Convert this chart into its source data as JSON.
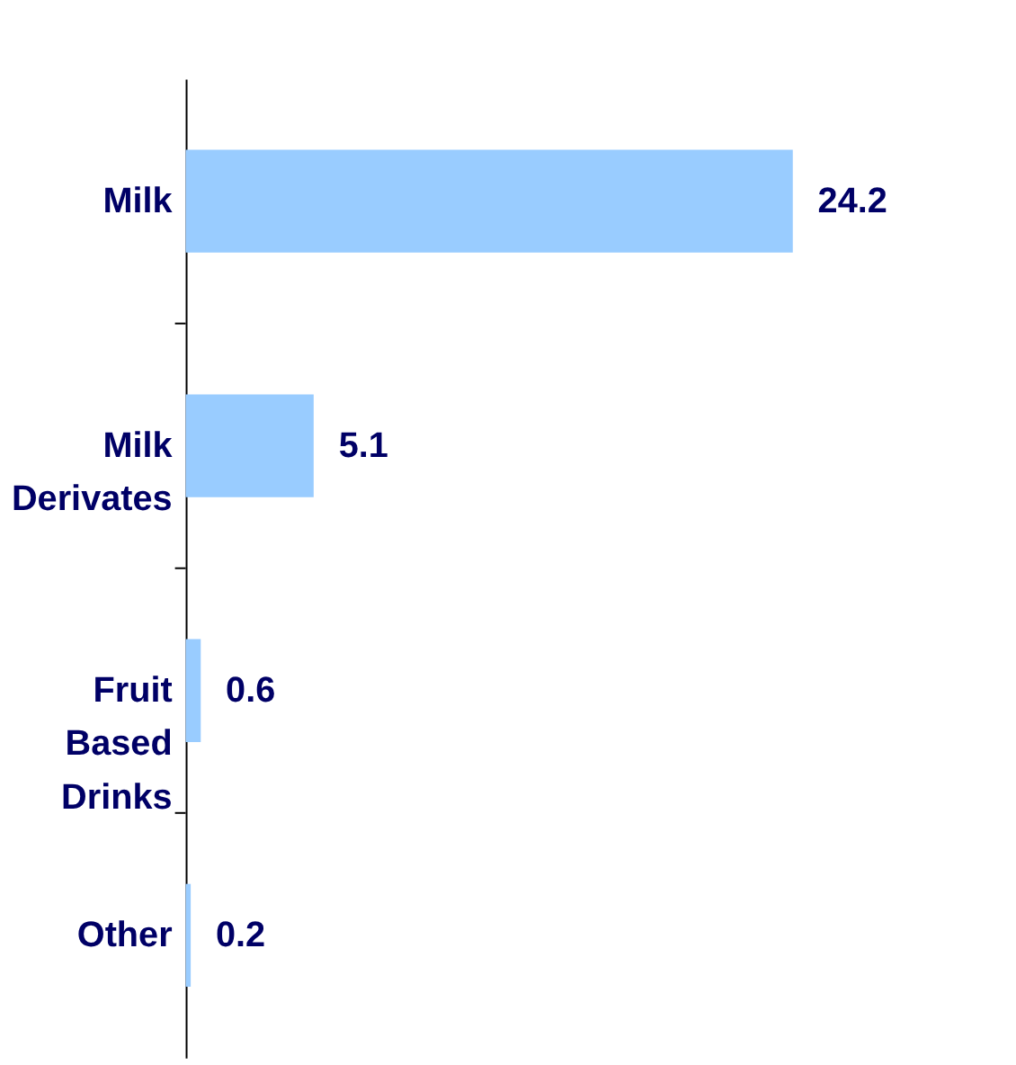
{
  "chart_data": {
    "type": "bar",
    "orientation": "horizontal",
    "categories": [
      "Milk",
      "Milk Derivates",
      "Fruit Based Drinks",
      "Other"
    ],
    "values": [
      24.2,
      5.1,
      0.6,
      0.2
    ],
    "color": "#99ccff",
    "data_labels": true
  }
}
